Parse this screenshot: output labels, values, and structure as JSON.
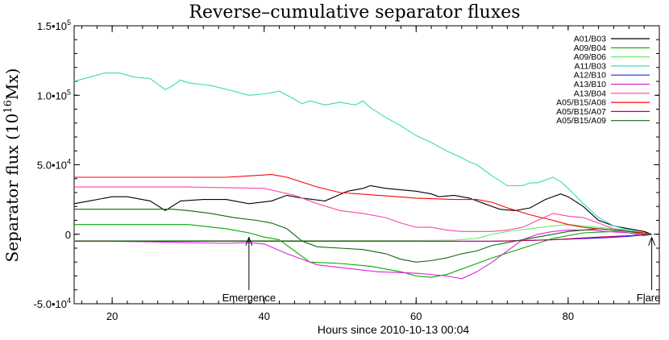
{
  "chart_data": {
    "type": "line",
    "title": "Reverse–cumulative separator fluxes",
    "xlabel": "Hours since 2010-10-13 00:04",
    "ylabel": "Separator flux (10",
    "ylabel_sup": "16",
    "ylabel_unit": "Mx)",
    "xlim": [
      15,
      92
    ],
    "ylim": [
      -50000,
      150000
    ],
    "x_ticks": [
      {
        "value": 20,
        "label": "20"
      },
      {
        "value": 40,
        "label": "40"
      },
      {
        "value": 60,
        "label": "60"
      },
      {
        "value": 80,
        "label": "80"
      }
    ],
    "y_ticks": [
      {
        "value": -50000,
        "label": "-5.0•10",
        "sup": "4"
      },
      {
        "value": 0,
        "label": "0",
        "sup": ""
      },
      {
        "value": 50000,
        "label": "5.0•10",
        "sup": "4"
      },
      {
        "value": 100000,
        "label": "1.0•10",
        "sup": "5"
      },
      {
        "value": 150000,
        "label": "1.5•10",
        "sup": "5"
      }
    ],
    "legend_position": "top-right",
    "grid": false,
    "annotations": [
      {
        "text": "Emergence",
        "x": 38
      },
      {
        "text": "Flare",
        "x": 91
      }
    ],
    "series": [
      {
        "name": "A01/B03",
        "color": "#000000",
        "x": [
          15,
          17,
          20,
          22,
          25,
          27,
          29,
          32,
          35,
          38,
          41,
          43,
          45,
          48,
          51,
          53,
          54,
          56,
          58,
          60,
          62,
          63,
          65,
          67,
          69,
          71,
          73,
          75,
          77,
          79,
          80,
          82,
          84,
          86,
          88,
          90,
          91
        ],
        "y": [
          22000,
          24000,
          27000,
          27000,
          24000,
          17000,
          24000,
          25000,
          25000,
          22000,
          24000,
          28000,
          26000,
          24000,
          31000,
          33000,
          35000,
          33000,
          32000,
          31000,
          29000,
          27000,
          28000,
          26000,
          22000,
          18000,
          17000,
          19000,
          25000,
          29000,
          27000,
          20000,
          10000,
          6000,
          4000,
          2000,
          0
        ]
      },
      {
        "name": "A09/B04",
        "color": "#00aa00",
        "x": [
          15,
          20,
          25,
          30,
          35,
          38,
          40,
          42,
          44,
          46,
          50,
          54,
          58,
          60,
          62,
          64,
          66,
          70,
          74,
          78,
          82,
          86,
          88,
          90,
          91
        ],
        "y": [
          7000,
          7000,
          7000,
          7000,
          4000,
          1000,
          -2000,
          -4000,
          -12000,
          -20000,
          -21000,
          -23000,
          -27000,
          -30000,
          -31000,
          -29000,
          -25000,
          -17000,
          -10000,
          -3000,
          1000,
          2000,
          1000,
          -1000,
          0
        ]
      },
      {
        "name": "A09/B06",
        "color": "#66ee66",
        "x": [
          15,
          30,
          45,
          60,
          65,
          68,
          70,
          72,
          75,
          78,
          80,
          82,
          84,
          86,
          88,
          90,
          91
        ],
        "y": [
          -4500,
          -4500,
          -4500,
          -4500,
          -4200,
          -3000,
          0,
          2000,
          4000,
          6000,
          7000,
          6000,
          5000,
          4000,
          3000,
          1000,
          0
        ]
      },
      {
        "name": "A11/B03",
        "color": "#33ddbb",
        "x": [
          15,
          17,
          19,
          21,
          23,
          25,
          26,
          27,
          28,
          29,
          30,
          33,
          36,
          38,
          40,
          42,
          44,
          45,
          46,
          48,
          50,
          52,
          53,
          54,
          56,
          58,
          60,
          62,
          64,
          66,
          67,
          68,
          70,
          72,
          74,
          75,
          76,
          78,
          79,
          80,
          82,
          84,
          86,
          88,
          90,
          91
        ],
        "y": [
          110000,
          113000,
          116000,
          116000,
          113000,
          112000,
          108000,
          104000,
          107000,
          111000,
          109000,
          107000,
          103000,
          100000,
          101000,
          103000,
          97000,
          94000,
          96000,
          93000,
          95000,
          93000,
          96000,
          91000,
          84000,
          78000,
          71000,
          66000,
          60000,
          55000,
          52000,
          50000,
          42000,
          35000,
          35000,
          37000,
          37000,
          41000,
          38000,
          33000,
          22000,
          12000,
          6000,
          3000,
          1000,
          0
        ]
      },
      {
        "name": "A12/B10",
        "color": "#2222ff",
        "x": [
          15,
          30,
          45,
          60,
          70,
          75,
          80,
          85,
          88,
          90,
          91
        ],
        "y": [
          -5000,
          -5000,
          -5000,
          -5000,
          -5000,
          -4500,
          -3500,
          -2500,
          -1500,
          -500,
          0
        ]
      },
      {
        "name": "A13/B10",
        "color": "#dd22dd",
        "x": [
          15,
          20,
          25,
          30,
          35,
          38,
          40,
          43,
          47,
          50,
          55,
          60,
          64,
          66,
          68,
          70,
          72,
          74,
          76,
          78,
          80,
          83,
          85,
          88,
          90,
          91
        ],
        "y": [
          -5000,
          -5000,
          -5500,
          -6000,
          -6500,
          -6000,
          -7000,
          -14000,
          -22000,
          -24000,
          -27000,
          -28000,
          -30000,
          -32000,
          -27000,
          -20000,
          -12000,
          -4000,
          0,
          2000,
          3000,
          3000,
          2000,
          1000,
          -1000,
          0
        ]
      },
      {
        "name": "A13/B04",
        "color": "#ff44aa",
        "x": [
          15,
          20,
          30,
          40,
          44,
          47,
          50,
          53,
          56,
          58,
          60,
          62,
          64,
          66,
          68,
          70,
          72,
          74,
          76,
          78,
          80,
          82,
          84,
          86,
          88,
          90,
          91
        ],
        "y": [
          34000,
          34000,
          34000,
          33000,
          28000,
          22000,
          17000,
          15000,
          12000,
          8000,
          5000,
          5000,
          3000,
          2000,
          2000,
          2000,
          3000,
          5000,
          10000,
          15000,
          13000,
          12000,
          8000,
          4000,
          2000,
          1000,
          0
        ]
      },
      {
        "name": "A05/B15/A08",
        "color": "#ff0000",
        "x": [
          15,
          20,
          25,
          30,
          35,
          38,
          41,
          43,
          47,
          50,
          55,
          60,
          65,
          68,
          70,
          72,
          75,
          78,
          80,
          82,
          84,
          86,
          88,
          90,
          91
        ],
        "y": [
          41000,
          41000,
          41000,
          41000,
          41000,
          42000,
          43000,
          41000,
          34000,
          30000,
          28000,
          26000,
          25000,
          25000,
          23000,
          19000,
          14000,
          10000,
          7000,
          5000,
          4000,
          3000,
          2000,
          1000,
          0
        ]
      },
      {
        "name": "A05/B15/A07",
        "color": "#cc0055",
        "x": [
          15,
          30,
          45,
          60,
          70,
          78,
          84,
          88,
          90,
          91
        ],
        "y": [
          -5000,
          -5000,
          -5000,
          -5000,
          -5000,
          -4000,
          -2000,
          -1000,
          -500,
          0
        ]
      },
      {
        "name": "A05/B15/A09",
        "color": "#116611",
        "x": [
          15,
          20,
          25,
          28,
          30,
          33,
          36,
          39,
          41,
          43,
          45,
          47,
          50,
          53,
          56,
          58,
          60,
          62,
          64,
          66,
          68,
          70,
          72,
          74,
          76,
          78,
          80,
          82,
          84,
          86,
          88,
          90,
          91
        ],
        "y": [
          18000,
          18000,
          18000,
          18000,
          17000,
          15000,
          12000,
          10000,
          8000,
          4000,
          -5000,
          -9000,
          -10000,
          -11000,
          -14000,
          -18000,
          -20000,
          -19000,
          -17000,
          -14000,
          -12000,
          -8000,
          -6000,
          -4000,
          -2000,
          0,
          2000,
          3000,
          4000,
          3000,
          2000,
          0,
          0
        ]
      }
    ]
  }
}
